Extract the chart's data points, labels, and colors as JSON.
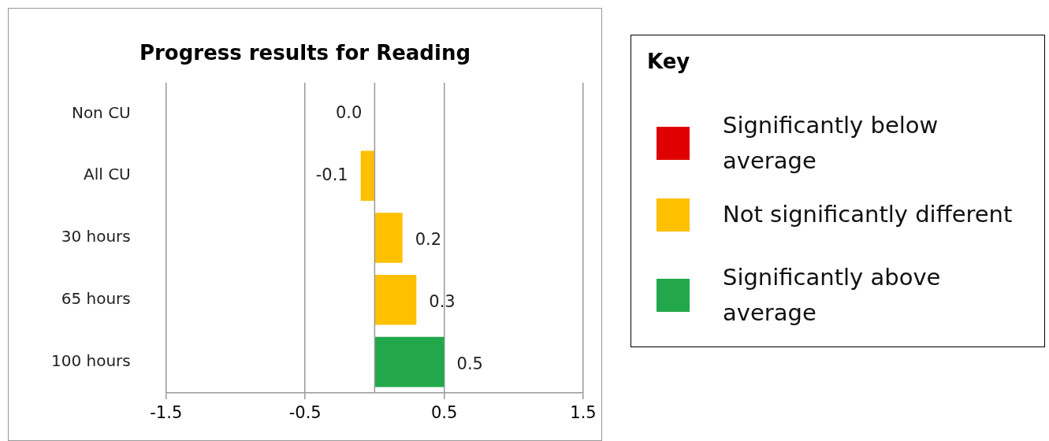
{
  "chart_data": {
    "type": "bar",
    "title": "Progress results for Reading",
    "orientation": "horizontal",
    "stacked": true,
    "categories": [
      "Non CU",
      "All CU",
      "30 hours",
      "65 hours",
      "100 hours"
    ],
    "series": [
      {
        "name": "Significantly below average",
        "color": "#e00000",
        "values": [
          null,
          null,
          null,
          null,
          null
        ]
      },
      {
        "name": "Not significantly different",
        "color": "#ffc000",
        "values": [
          0.0,
          -0.1,
          0.2,
          0.3,
          null
        ],
        "value_labels": [
          "0.0",
          "-0.1",
          "0.2",
          "0.3",
          null
        ]
      },
      {
        "name": "Significantly above average",
        "color": "#22a84a",
        "values": [
          null,
          null,
          null,
          null,
          0.5
        ],
        "value_labels": [
          null,
          null,
          null,
          null,
          "0.5"
        ]
      }
    ],
    "xlim": [
      -1.5,
      1.5
    ],
    "xticks": [
      -1.5,
      -0.5,
      0.5,
      1.5
    ],
    "grid": "x",
    "data_labels": true,
    "legend": "right",
    "legend_title": "Key"
  }
}
